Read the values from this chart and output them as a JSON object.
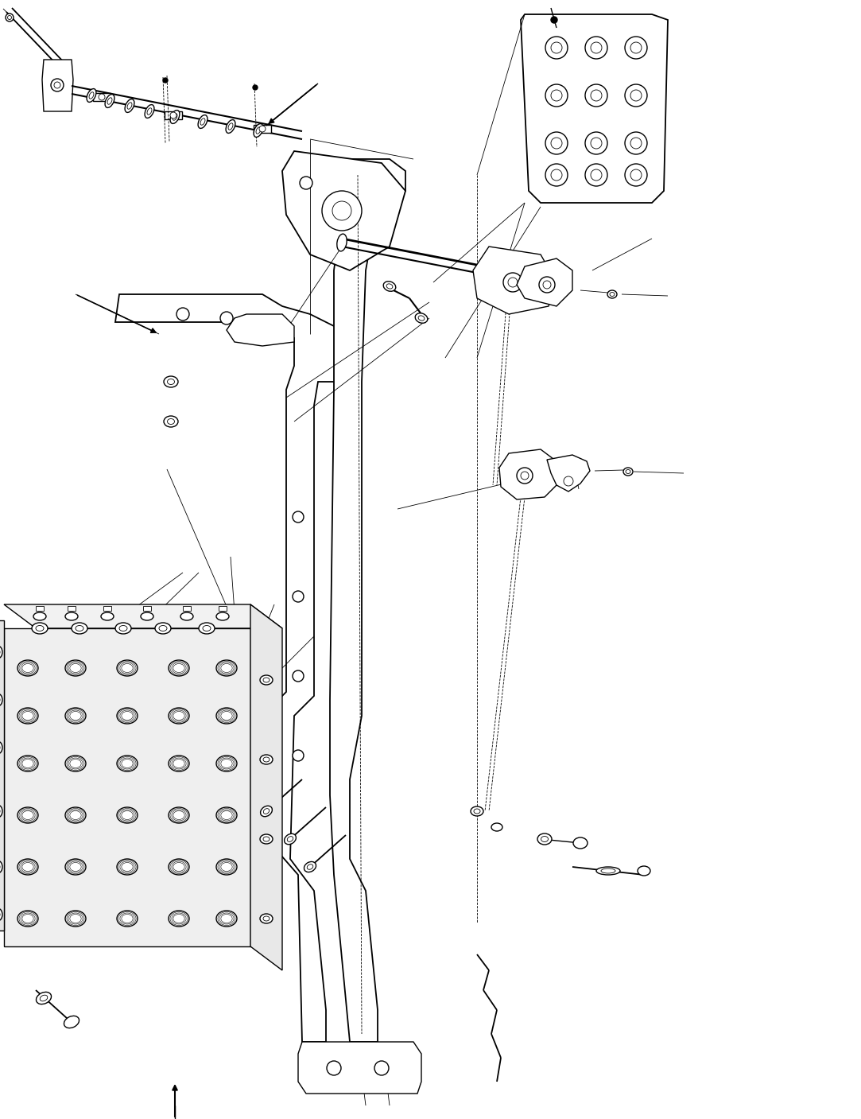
{
  "bg_color": "#ffffff",
  "line_color": "#000000",
  "fig_width": 10.83,
  "fig_height": 14.07,
  "dpi": 100
}
